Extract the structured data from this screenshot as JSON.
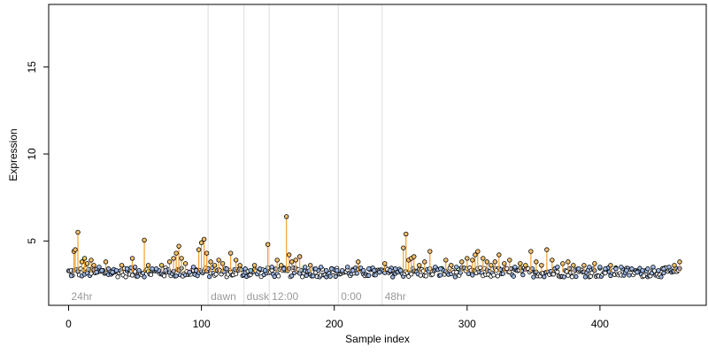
{
  "chart_data": {
    "type": "scatter",
    "xlabel": "Sample index",
    "ylabel": "Expression",
    "xlim": [
      -15,
      480
    ],
    "ylim": [
      1.3,
      18.6
    ],
    "xticks": [
      0,
      100,
      200,
      300,
      400
    ],
    "yticks": [
      5,
      10,
      15
    ],
    "baseline": 3.2,
    "colors": {
      "baseline_point_fill": "#9fb9e6",
      "high_point_fill": "#f5c16c",
      "stem": "#f0a030",
      "point_edge": "#000000",
      "divider": "#dddddd",
      "region_label": "#9a9a9a",
      "axis": "#000000"
    },
    "regions": [
      {
        "label": "24hr",
        "start": 0
      },
      {
        "label": "dawn",
        "start": 105
      },
      {
        "label": "dusk",
        "start": 132
      },
      {
        "label": "12:00",
        "start": 151
      },
      {
        "label": "0:00",
        "start": 203
      },
      {
        "label": "48hr",
        "start": 236
      }
    ],
    "n_points": 461,
    "points": {
      "x": [
        2,
        4,
        5,
        7,
        10,
        12,
        14,
        17,
        19,
        21,
        23,
        25,
        28,
        30,
        33,
        36,
        40,
        44,
        48,
        50,
        53,
        57,
        60,
        63,
        66,
        70,
        73,
        76,
        79,
        81,
        83,
        85,
        88,
        91,
        94,
        96,
        98,
        100,
        102,
        104,
        107,
        110,
        113,
        116,
        119,
        122,
        126,
        129,
        133,
        137,
        140,
        144,
        148,
        150,
        153,
        157,
        160,
        162,
        164,
        166,
        168,
        171,
        174,
        178,
        182,
        186,
        190,
        194,
        198,
        202,
        206,
        210,
        214,
        218,
        222,
        226,
        230,
        234,
        238,
        242,
        246,
        250,
        252,
        254,
        256,
        258,
        260,
        264,
        268,
        272,
        276,
        280,
        284,
        288,
        292,
        296,
        300,
        304,
        306,
        308,
        312,
        315,
        318,
        321,
        324,
        328,
        332,
        336,
        340,
        344,
        348,
        352,
        356,
        360,
        364,
        368,
        372,
        376,
        380,
        384,
        388,
        392,
        396,
        400,
        404,
        408,
        412,
        416,
        420,
        424,
        428,
        432,
        436,
        440,
        444,
        448,
        452,
        456,
        460
      ],
      "y": [
        3.0,
        4.4,
        4.5,
        5.5,
        3.8,
        4.0,
        3.7,
        3.9,
        3.6,
        3.2,
        3.5,
        3.3,
        3.8,
        3.4,
        3.2,
        3.3,
        3.6,
        3.4,
        4.0,
        3.5,
        3.3,
        5.05,
        3.6,
        3.4,
        3.4,
        3.6,
        3.3,
        3.8,
        4.0,
        4.3,
        4.7,
        4.0,
        3.7,
        3.2,
        3.5,
        3.3,
        4.5,
        4.9,
        5.1,
        4.3,
        3.8,
        3.6,
        3.9,
        3.7,
        3.4,
        4.3,
        3.9,
        3.6,
        3.4,
        3.3,
        3.6,
        3.4,
        3.3,
        4.8,
        3.5,
        3.9,
        3.6,
        3.4,
        6.4,
        4.2,
        3.8,
        3.9,
        4.1,
        3.5,
        3.6,
        3.4,
        3.5,
        3.3,
        3.4,
        3.3,
        3.3,
        3.5,
        3.3,
        3.8,
        3.3,
        3.4,
        3.3,
        3.2,
        3.7,
        3.3,
        3.4,
        3.3,
        4.6,
        5.4,
        3.9,
        4.0,
        4.1,
        3.6,
        3.8,
        4.4,
        3.5,
        3.4,
        3.9,
        3.6,
        3.5,
        3.8,
        4.0,
        3.9,
        4.2,
        4.4,
        4.0,
        3.8,
        3.6,
        3.8,
        4.2,
        3.7,
        3.9,
        3.5,
        3.7,
        3.6,
        4.4,
        3.8,
        3.6,
        4.5,
        3.9,
        3.5,
        3.7,
        3.8,
        3.6,
        3.4,
        3.6,
        3.5,
        3.7,
        3.5,
        3.4,
        3.6,
        3.4,
        3.5,
        3.3,
        3.4,
        3.2,
        3.3,
        3.4,
        3.5,
        3.3,
        3.4,
        3.5,
        3.6,
        3.8
      ]
    }
  }
}
